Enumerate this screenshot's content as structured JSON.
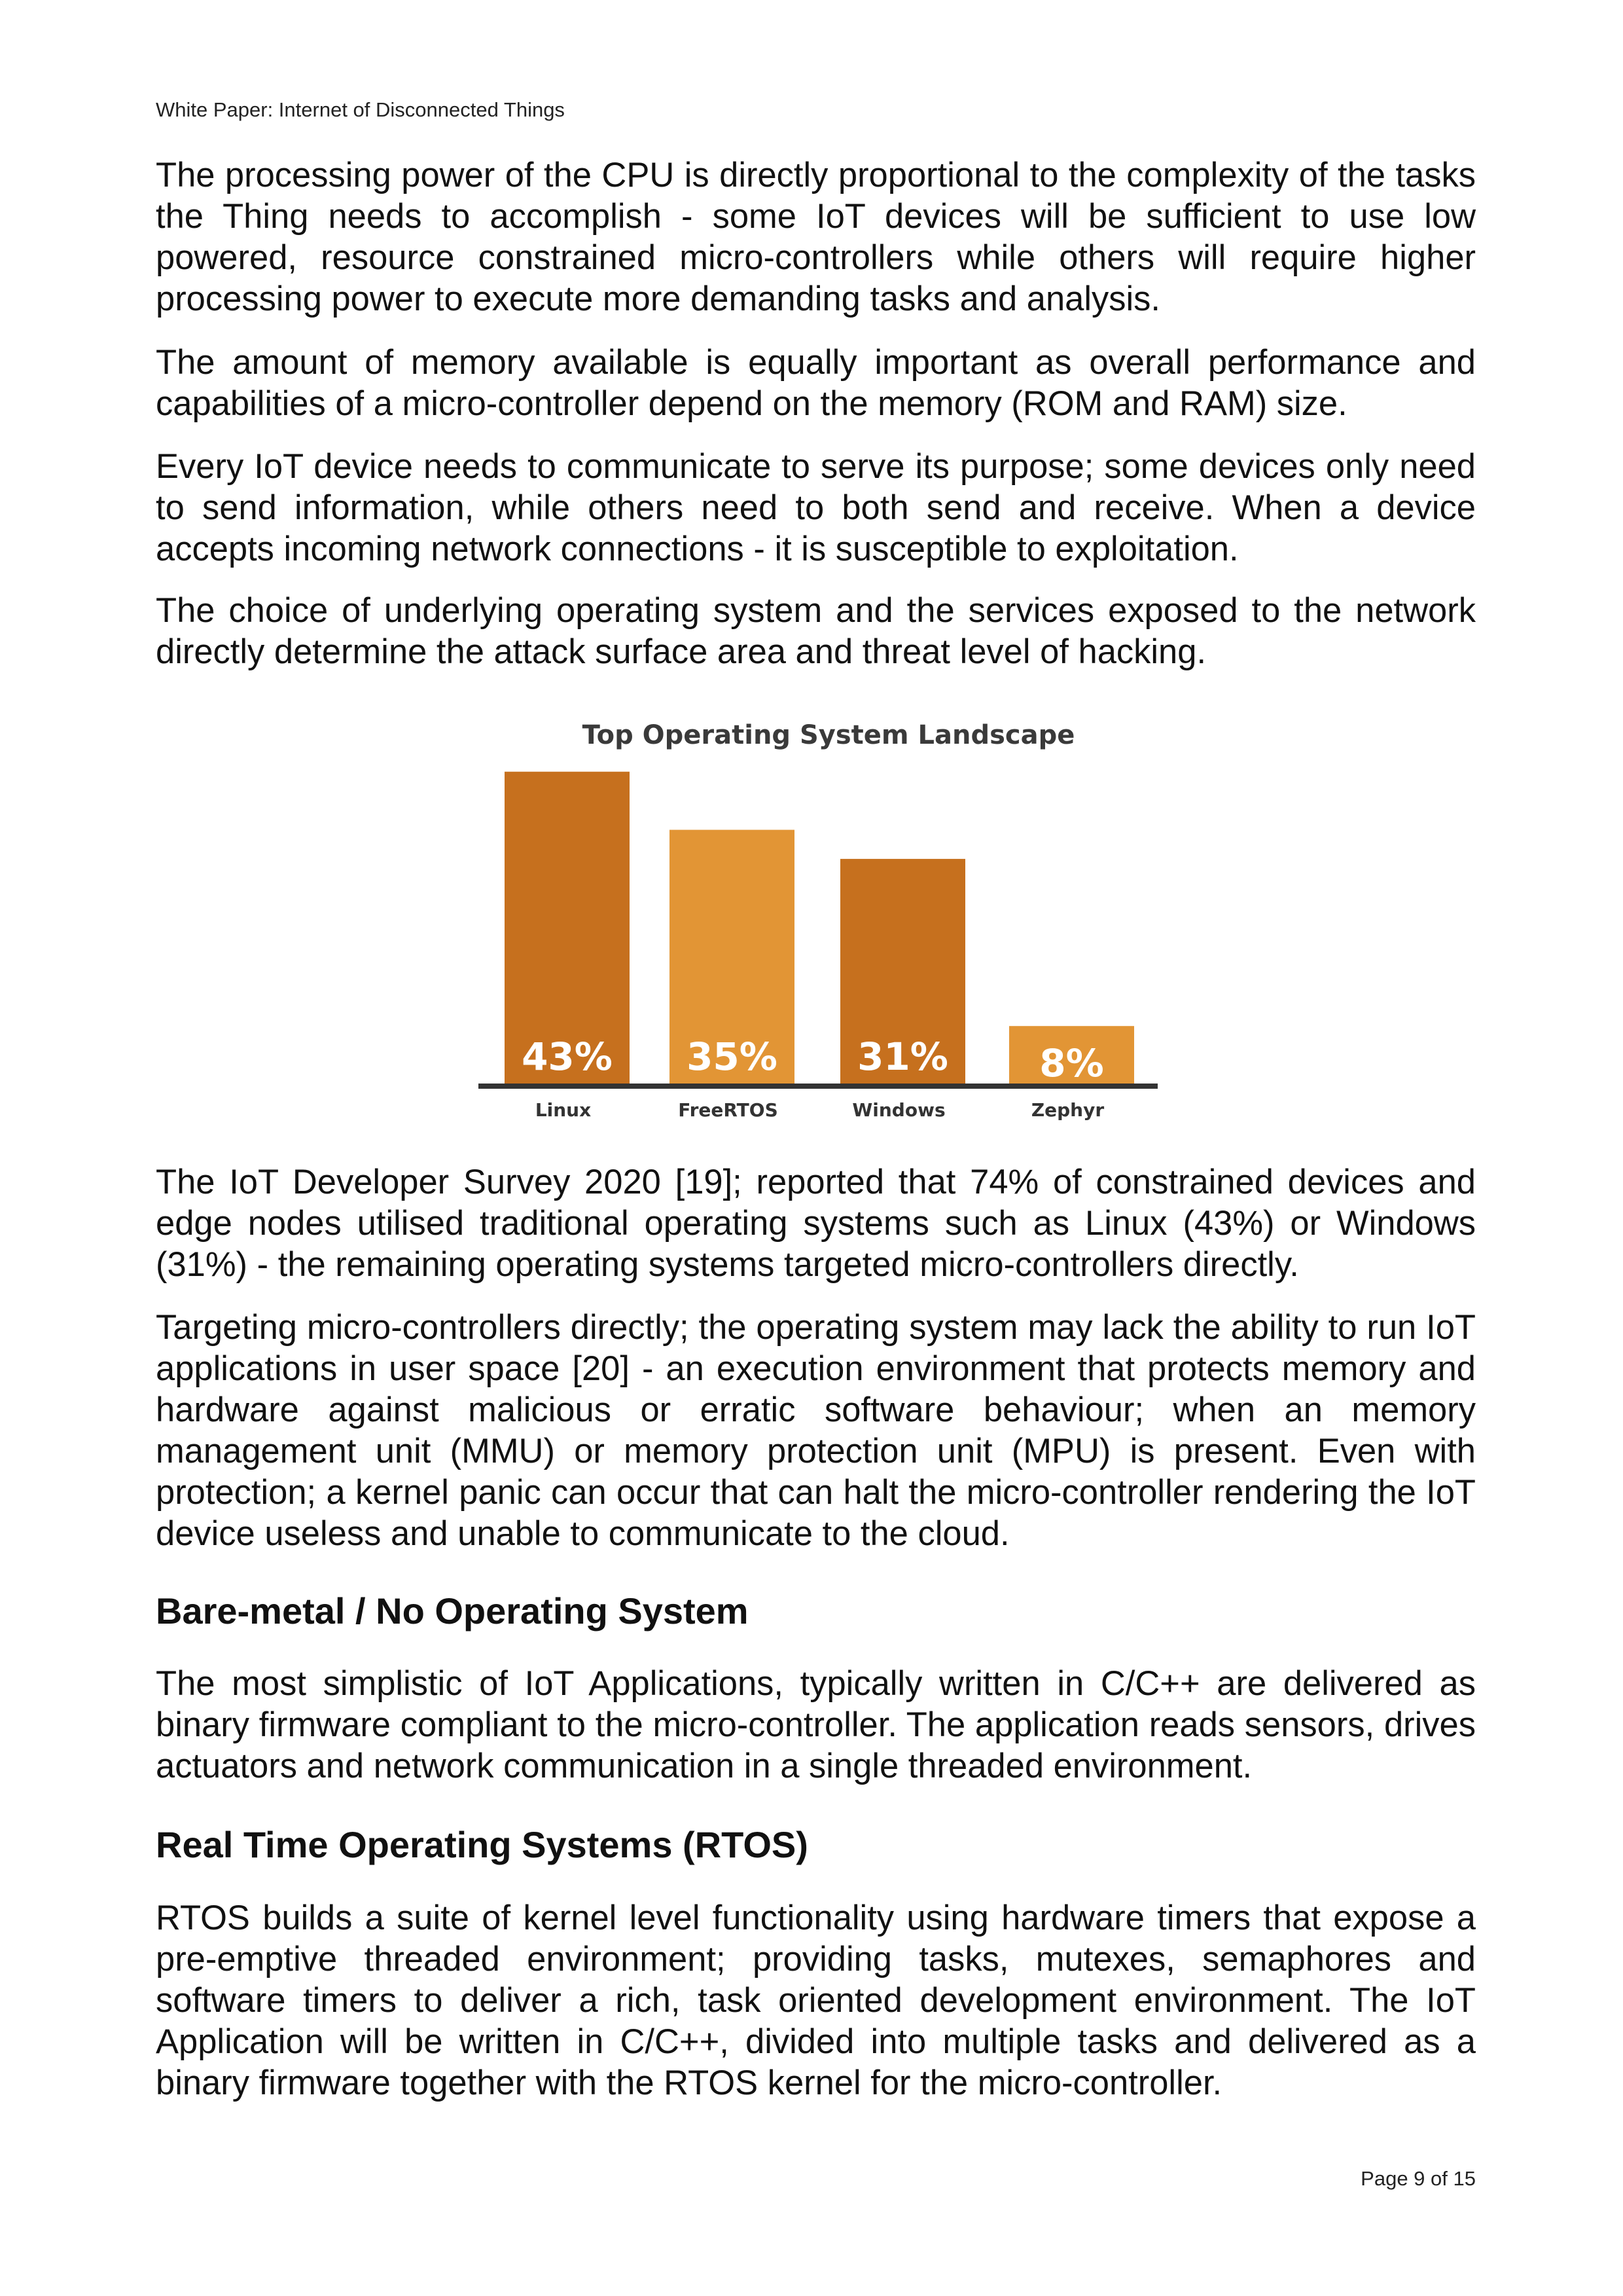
{
  "header": {
    "title": "White Paper: Internet of Disconnected Things"
  },
  "paragraphs": [
    "The processing power of the CPU is directly proportional to the complexity of the tasks the Thing needs to accomplish - some IoT devices will be sufficient to use low powered, resource constrained micro-controllers while others will require higher processing power to execute more demanding tasks and analysis.",
    "The amount of memory available is equally important as overall performance and capabilities of a micro-controller depend on the memory (ROM and RAM) size.",
    "Every IoT device needs to communicate to serve its purpose; some devices only need to send information, while others need to both send and receive. When a device accepts incoming network connections - it is susceptible to exploitation.",
    "The choice of underlying operating system and the services exposed to the network directly determine the attack surface area and threat level of hacking.",
    "The IoT Developer Survey 2020 [19]; reported that 74% of constrained devices and edge nodes utilised traditional operating systems such as Linux (43%) or Windows (31%) - the remaining operating systems targeted micro-controllers directly.",
    "Targeting micro-controllers directly; the operating system may lack the ability to run IoT applications in user space [20] - an execution environment that protects memory and hardware against malicious or erratic software behaviour; when an memory management unit (MMU) or memory protection unit (MPU) is present. Even with protection; a kernel panic can occur that can halt the micro-controller rendering the IoT device useless and unable to communicate to the cloud.",
    "The most simplistic of IoT Applications, typically written in C/C++ are delivered as binary firmware compliant to the micro-controller. The application reads sensors, drives actuators and network communication in a single threaded environment.",
    "RTOS builds a suite of kernel level functionality using hardware timers that expose a pre-emptive threaded environment; providing tasks, mutexes, semaphores and software timers to deliver a rich, task oriented development environment. The IoT Application will be written in C/C++, divided into multiple tasks and delivered as a binary firmware together with the RTOS kernel for the micro-controller."
  ],
  "headings": [
    "Bare-metal / No Operating System",
    "Real Time Operating Systems (RTOS)"
  ],
  "footer": {
    "page": "Page 9 of 15"
  },
  "chart_data": {
    "type": "bar",
    "title": "Top Operating System Landscape",
    "categories": [
      "Linux",
      "FreeRTOS",
      "Windows",
      "Zephyr"
    ],
    "values": [
      43,
      35,
      31,
      8
    ],
    "value_labels": [
      "43%",
      "35%",
      "31%",
      "8%"
    ],
    "colors": [
      "#C6701E",
      "#E29535",
      "#C6701E",
      "#E29535"
    ],
    "grid": false,
    "xlabel": "",
    "ylabel": "",
    "ylim": [
      0,
      43
    ]
  }
}
